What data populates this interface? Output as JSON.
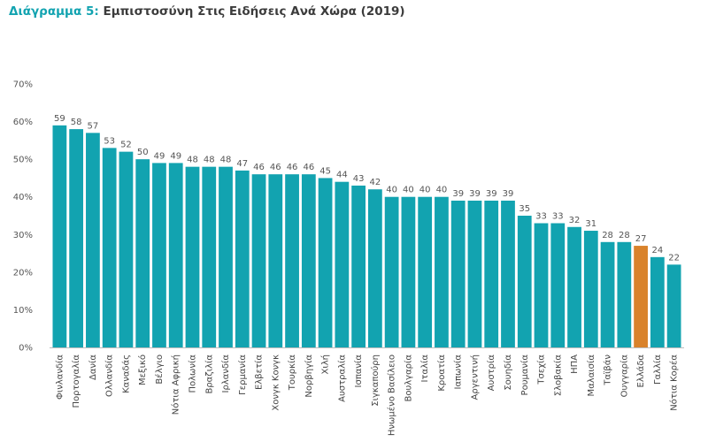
{
  "title": {
    "prefix": "Διάγραμμα 5:",
    "text": "Εμπιστοσύνη Στις Ειδήσεις Ανά Χώρα (2019)"
  },
  "colors": {
    "bar": "#12a3b0",
    "highlight": "#d9822b",
    "title_prefix": "#12a3b0"
  },
  "chart_data": {
    "type": "bar",
    "title": "Διάγραμμα 5: Εμπιστοσύνη Στις Ειδήσεις Ανά Χώρα (2019)",
    "categories": [
      "Φινλανδία",
      "Πορτογαλία",
      "Δανία",
      "Ολλανδία",
      "Καναδάς",
      "Μεξικό",
      "Βέλγιο",
      "Νότια Αφρική",
      "Πολωνία",
      "Βραζιλία",
      "Ιρλανδία",
      "Γερμανία",
      "Ελβετία",
      "Χονγκ Κονγκ",
      "Τουρκία",
      "Νορβηγία",
      "Χιλή",
      "Αυστραλία",
      "Ισπανία",
      "Σιγκαπούρη",
      "Ηνωμένο Βασίλειο",
      "Βουλγαρία",
      "Ιταλία",
      "Κροατία",
      "Ιαπωνία",
      "Αργεντινή",
      "Αυστρία",
      "Σουηδία",
      "Ρουμανία",
      "Τσεχία",
      "Σλοβακία",
      "ΗΠΑ",
      "Μαλαισία",
      "Ταϊβάν",
      "Ουγγαρία",
      "Ελλάδα",
      "Γαλλία",
      "Νότια Κορέα"
    ],
    "values": [
      59,
      58,
      57,
      53,
      52,
      50,
      49,
      49,
      48,
      48,
      48,
      47,
      46,
      46,
      46,
      46,
      45,
      44,
      43,
      42,
      40,
      40,
      40,
      40,
      39,
      39,
      39,
      39,
      35,
      33,
      33,
      32,
      31,
      28,
      28,
      27,
      24,
      22
    ],
    "highlight_category": "Ελλάδα",
    "ylim": [
      0,
      70
    ],
    "yticks": [
      "0%",
      "10%",
      "20%",
      "30%",
      "40%",
      "50%",
      "60%",
      "70%"
    ],
    "grid": false,
    "legend": "none"
  }
}
